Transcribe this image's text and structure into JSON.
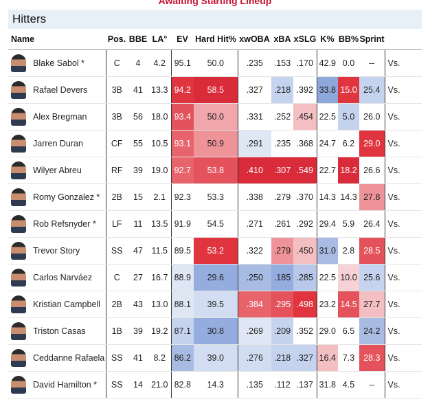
{
  "banner": "Awaiting Starting Lineup",
  "section_title": "Hitters",
  "columns": [
    "Name",
    "Pos.",
    "BBE",
    "LA°",
    "EV",
    "Hard Hit%",
    "xwOBA",
    "xBA",
    "xSLG",
    "K%",
    "BB%",
    "Sprint",
    ""
  ],
  "vs_label": "Vs.",
  "players": [
    {
      "name": "Blake Sabol *",
      "pos": "C",
      "bbe": "4",
      "la": "4.2",
      "ev": "95.1",
      "hardhit": "50.0",
      "xwoba": ".235",
      "xba": ".153",
      "xslg": ".170",
      "k": "42.9",
      "bb": "0.0",
      "sprint": "--"
    },
    {
      "name": "Rafael Devers",
      "pos": "3B",
      "bbe": "41",
      "la": "13.3",
      "ev": "94.2",
      "hardhit": "58.5",
      "xwoba": ".327",
      "xba": ".218",
      "xslg": ".392",
      "k": "33.8",
      "bb": "15.0",
      "sprint": "25.4"
    },
    {
      "name": "Alex Bregman",
      "pos": "3B",
      "bbe": "56",
      "la": "18.0",
      "ev": "93.4",
      "hardhit": "50.0",
      "xwoba": ".331",
      "xba": ".252",
      "xslg": ".454",
      "k": "22.5",
      "bb": "5.0",
      "sprint": "26.0"
    },
    {
      "name": "Jarren Duran",
      "pos": "CF",
      "bbe": "55",
      "la": "10.5",
      "ev": "93.1",
      "hardhit": "50.9",
      "xwoba": ".291",
      "xba": ".235",
      "xslg": ".368",
      "k": "24.7",
      "bb": "6.2",
      "sprint": "29.0"
    },
    {
      "name": "Wilyer Abreu",
      "pos": "RF",
      "bbe": "39",
      "la": "19.0",
      "ev": "92.7",
      "hardhit": "53.8",
      "xwoba": ".410",
      "xba": ".307",
      "xslg": ".549",
      "k": "22.7",
      "bb": "18.2",
      "sprint": "26.6"
    },
    {
      "name": "Romy Gonzalez *",
      "pos": "2B",
      "bbe": "15",
      "la": "2.1",
      "ev": "92.3",
      "hardhit": "53.3",
      "xwoba": ".338",
      "xba": ".279",
      "xslg": ".370",
      "k": "14.3",
      "bb": "14.3",
      "sprint": "27.8"
    },
    {
      "name": "Rob Refsnyder *",
      "pos": "LF",
      "bbe": "11",
      "la": "13.5",
      "ev": "91.9",
      "hardhit": "54.5",
      "xwoba": ".271",
      "xba": ".261",
      "xslg": ".292",
      "k": "29.4",
      "bb": "5.9",
      "sprint": "26.4"
    },
    {
      "name": "Trevor Story",
      "pos": "SS",
      "bbe": "47",
      "la": "11.5",
      "ev": "89.5",
      "hardhit": "53.2",
      "xwoba": ".322",
      "xba": ".279",
      "xslg": ".450",
      "k": "31.0",
      "bb": "2.8",
      "sprint": "28.5"
    },
    {
      "name": "Carlos Narváez",
      "pos": "C",
      "bbe": "27",
      "la": "16.7",
      "ev": "88.9",
      "hardhit": "29.6",
      "xwoba": ".250",
      "xba": ".185",
      "xslg": ".285",
      "k": "22.5",
      "bb": "10.0",
      "sprint": "25.6"
    },
    {
      "name": "Kristian Campbell",
      "pos": "2B",
      "bbe": "43",
      "la": "13.0",
      "ev": "88.1",
      "hardhit": "39.5",
      "xwoba": ".384",
      "xba": ".295",
      "xslg": ".498",
      "k": "23.2",
      "bb": "14.5",
      "sprint": "27.7"
    },
    {
      "name": "Triston Casas",
      "pos": "1B",
      "bbe": "39",
      "la": "19.2",
      "ev": "87.1",
      "hardhit": "30.8",
      "xwoba": ".269",
      "xba": ".209",
      "xslg": ".352",
      "k": "29.0",
      "bb": "6.5",
      "sprint": "24.2"
    },
    {
      "name": "Ceddanne Rafaela",
      "pos": "SS",
      "bbe": "41",
      "la": "8.2",
      "ev": "86.2",
      "hardhit": "39.0",
      "xwoba": ".276",
      "xba": ".218",
      "xslg": ".327",
      "k": "16.4",
      "bb": "7.3",
      "sprint": "28.3"
    },
    {
      "name": "David Hamilton *",
      "pos": "SS",
      "bbe": "14",
      "la": "21.0",
      "ev": "82.8",
      "hardhit": "14.3",
      "xwoba": ".135",
      "xba": ".112",
      "xslg": ".137",
      "k": "31.8",
      "bb": "4.5",
      "sprint": "--"
    }
  ],
  "cell_colors": [
    {
      "ev": "",
      "hardhit": "",
      "xwoba": "",
      "xba": "",
      "xslg": "",
      "k": "",
      "bb": "",
      "sprint": ""
    },
    {
      "ev": "#e0353f",
      "hardhit": "#d92b3a",
      "xwoba": "",
      "xba": "#c5d3ee",
      "xslg": "",
      "k": "#8fa8dc",
      "bb": "#e0353f",
      "sprint": "#c5d3ee"
    },
    {
      "ev": "#e4525b",
      "hardhit": "#f0a6aa",
      "xwoba": "",
      "xba": "",
      "xslg": "#f4bfc2",
      "k": "",
      "bb": "#c5d3ee",
      "sprint": ""
    },
    {
      "ev": "#e8646c",
      "hardhit": "#ee9498",
      "xwoba": "#dfe6f4",
      "xba": "",
      "xslg": "",
      "k": "",
      "bb": "",
      "sprint": "#e0353f"
    },
    {
      "ev": "#e8646c",
      "hardhit": "#e4525b",
      "xwoba": "#d92b3a",
      "xba": "#d92b3a",
      "xslg": "#d92b3a",
      "k": "",
      "bb": "#d92b3a",
      "sprint": ""
    },
    {
      "ev": "",
      "hardhit": "",
      "xwoba": "",
      "xba": "",
      "xslg": "",
      "k": "",
      "bb": "",
      "sprint": "#ee9498"
    },
    {
      "ev": "",
      "hardhit": "",
      "xwoba": "",
      "xba": "",
      "xslg": "",
      "k": "",
      "bb": "",
      "sprint": ""
    },
    {
      "ev": "",
      "hardhit": "#e0353f",
      "xwoba": "",
      "xba": "#ee9498",
      "xslg": "#f4bfc2",
      "k": "#a7bbe3",
      "bb": "",
      "sprint": "#e4525b"
    },
    {
      "ev": "#dfe6f4",
      "hardhit": "#95adde",
      "xwoba": "#a7bbe3",
      "xba": "#95adde",
      "xslg": "#b9c8e9",
      "k": "",
      "bb": "#f6d2d4",
      "sprint": "#c5d3ee"
    },
    {
      "ev": "#dfe6f4",
      "hardhit": "#d3ddf1",
      "xwoba": "#e8646c",
      "xba": "#e4525b",
      "xslg": "#e0353f",
      "k": "",
      "bb": "#e4525b",
      "sprint": "#f4bfc2"
    },
    {
      "ev": "#c5d3ee",
      "hardhit": "#95adde",
      "xwoba": "#dfe6f4",
      "xba": "#c5d3ee",
      "xslg": "",
      "k": "",
      "bb": "",
      "sprint": "#a7bbe3"
    },
    {
      "ev": "#a7bbe3",
      "hardhit": "#d3ddf1",
      "xwoba": "#d3ddf1",
      "xba": "#c5d3ee",
      "xslg": "#c5d3ee",
      "k": "#f4bfc2",
      "bb": "",
      "sprint": "#e4525b"
    },
    {
      "ev": "",
      "hardhit": "",
      "xwoba": "",
      "xba": "",
      "xslg": "",
      "k": "",
      "bb": "",
      "sprint": ""
    }
  ],
  "dark_text_threshold_colors": [
    "#e0353f",
    "#d92b3a",
    "#e4525b",
    "#e8646c"
  ],
  "accent_color": "#c8102e"
}
